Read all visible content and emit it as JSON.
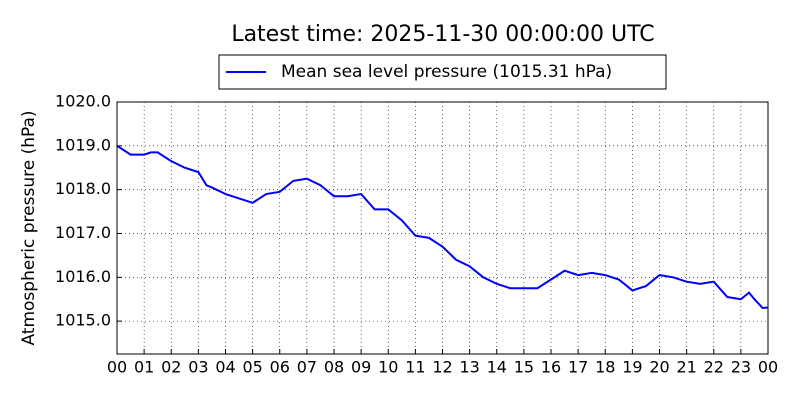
{
  "chart_data": {
    "type": "line",
    "title": "Latest time: 2025-11-30 00:00:00 UTC",
    "y_label": "Atmospheric pressure (hPa)",
    "x": [
      0,
      0.5,
      1,
      1.25,
      1.5,
      2,
      2.5,
      3,
      3.3,
      3.5,
      4,
      4.5,
      5,
      5.5,
      6,
      6.5,
      7,
      7.5,
      8,
      8.5,
      9,
      9.5,
      10,
      10.5,
      11,
      11.5,
      12,
      12.5,
      13,
      13.5,
      14,
      14.5,
      15,
      15.5,
      16,
      16.5,
      17,
      17.5,
      18,
      18.5,
      19,
      19.5,
      20,
      20.5,
      21,
      21.5,
      22,
      22.5,
      23,
      23.3,
      23.5,
      23.8,
      24
    ],
    "series": [
      {
        "name": "Mean sea level pressure (1015.31 hPa)",
        "color": "#0000ff",
        "values": [
          1019.0,
          1018.8,
          1018.8,
          1018.85,
          1018.85,
          1018.65,
          1018.5,
          1018.4,
          1018.1,
          1018.05,
          1017.9,
          1017.8,
          1017.7,
          1017.9,
          1017.95,
          1018.2,
          1018.25,
          1018.1,
          1017.85,
          1017.85,
          1017.9,
          1017.55,
          1017.55,
          1017.3,
          1016.95,
          1016.9,
          1016.7,
          1016.4,
          1016.25,
          1016.0,
          1015.85,
          1015.75,
          1015.75,
          1015.75,
          1015.95,
          1016.15,
          1016.05,
          1016.1,
          1016.05,
          1015.95,
          1015.7,
          1015.8,
          1016.05,
          1016.0,
          1015.9,
          1015.85,
          1015.9,
          1015.55,
          1015.5,
          1015.65,
          1015.5,
          1015.3,
          1015.31
        ]
      }
    ],
    "xlim": [
      0,
      24
    ],
    "xticks": [
      {
        "value": 0,
        "label": "00"
      },
      {
        "value": 1,
        "label": "01"
      },
      {
        "value": 2,
        "label": "02"
      },
      {
        "value": 3,
        "label": "03"
      },
      {
        "value": 4,
        "label": "04"
      },
      {
        "value": 5,
        "label": "05"
      },
      {
        "value": 6,
        "label": "06"
      },
      {
        "value": 7,
        "label": "07"
      },
      {
        "value": 8,
        "label": "08"
      },
      {
        "value": 9,
        "label": "09"
      },
      {
        "value": 10,
        "label": "10"
      },
      {
        "value": 11,
        "label": "11"
      },
      {
        "value": 12,
        "label": "12"
      },
      {
        "value": 13,
        "label": "13"
      },
      {
        "value": 14,
        "label": "14"
      },
      {
        "value": 15,
        "label": "15"
      },
      {
        "value": 16,
        "label": "16"
      },
      {
        "value": 17,
        "label": "17"
      },
      {
        "value": 18,
        "label": "18"
      },
      {
        "value": 19,
        "label": "19"
      },
      {
        "value": 20,
        "label": "20"
      },
      {
        "value": 21,
        "label": "21"
      },
      {
        "value": 22,
        "label": "22"
      },
      {
        "value": 23,
        "label": "23"
      },
      {
        "value": 24,
        "label": "00"
      }
    ],
    "ylim": [
      1014.25,
      1020
    ],
    "yticks": [
      {
        "value": 1015,
        "label": "1015.0"
      },
      {
        "value": 1016,
        "label": "1016.0"
      },
      {
        "value": 1017,
        "label": "1017.0"
      },
      {
        "value": 1018,
        "label": "1018.0"
      },
      {
        "value": 1019,
        "label": "1019.0"
      },
      {
        "value": 1020,
        "label": "1020.0"
      }
    ],
    "grid": true
  }
}
